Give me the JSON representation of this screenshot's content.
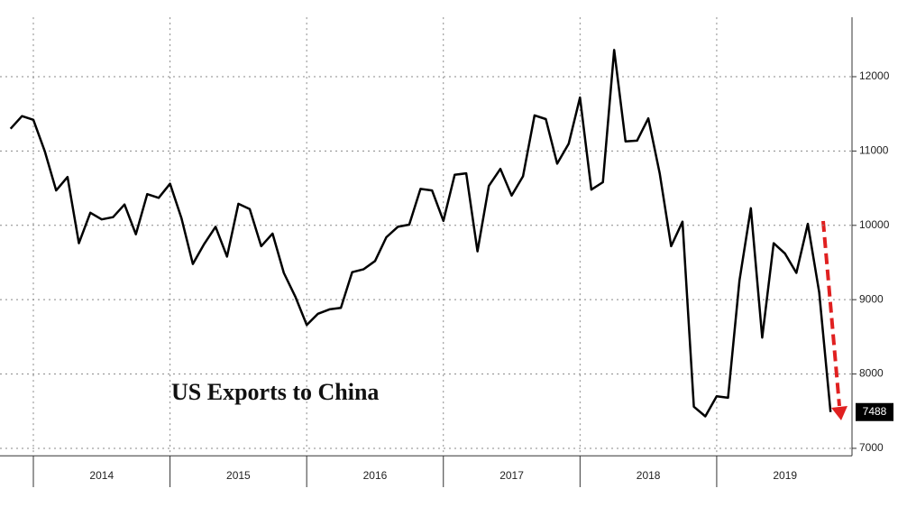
{
  "chart_data": {
    "type": "line",
    "annotation": "US Exports to China",
    "x": [
      2013.833,
      2013.917,
      2014.0,
      2014.083,
      2014.167,
      2014.25,
      2014.333,
      2014.417,
      2014.5,
      2014.583,
      2014.667,
      2014.75,
      2014.833,
      2014.917,
      2015.0,
      2015.083,
      2015.167,
      2015.25,
      2015.333,
      2015.417,
      2015.5,
      2015.583,
      2015.667,
      2015.75,
      2015.833,
      2015.917,
      2016.0,
      2016.083,
      2016.167,
      2016.25,
      2016.333,
      2016.417,
      2016.5,
      2016.583,
      2016.667,
      2016.75,
      2016.833,
      2016.917,
      2017.0,
      2017.083,
      2017.167,
      2017.25,
      2017.333,
      2017.417,
      2017.5,
      2017.583,
      2017.667,
      2017.75,
      2017.833,
      2017.917,
      2018.0,
      2018.083,
      2018.167,
      2018.25,
      2018.333,
      2018.417,
      2018.5,
      2018.583,
      2018.667,
      2018.75,
      2018.833,
      2018.917,
      2019.0,
      2019.083,
      2019.167,
      2019.25,
      2019.333,
      2019.417,
      2019.5,
      2019.583,
      2019.667,
      2019.75,
      2019.833
    ],
    "series": [
      {
        "name": "US Exports to China",
        "color": "#000000",
        "values": [
          11300,
          11470,
          11420,
          11000,
          10470,
          10650,
          9760,
          10170,
          10080,
          10110,
          10280,
          9880,
          10420,
          10370,
          10560,
          10100,
          9480,
          9750,
          9980,
          9580,
          10290,
          10220,
          9720,
          9890,
          9360,
          9040,
          8660,
          8810,
          8870,
          8890,
          9370,
          9410,
          9520,
          9840,
          9980,
          10010,
          10490,
          10470,
          10060,
          10680,
          10700,
          9650,
          10530,
          10760,
          10400,
          10660,
          11480,
          11430,
          10830,
          11100,
          11720,
          10480,
          10580,
          12360,
          11130,
          11140,
          11440,
          10700,
          9720,
          10050,
          7560,
          7430,
          7700,
          7680,
          9260,
          10230,
          8490,
          9760,
          9620,
          9360,
          10020,
          9100,
          7488
        ]
      }
    ],
    "xlim": [
      2013.756,
      2019.99
    ],
    "xticks": [
      2014,
      2015,
      2016,
      2017,
      2018,
      2019
    ],
    "ylim": [
      6900,
      12800
    ],
    "yticks": [
      7000,
      8000,
      9000,
      10000,
      11000,
      12000
    ],
    "grid": true
  }
}
